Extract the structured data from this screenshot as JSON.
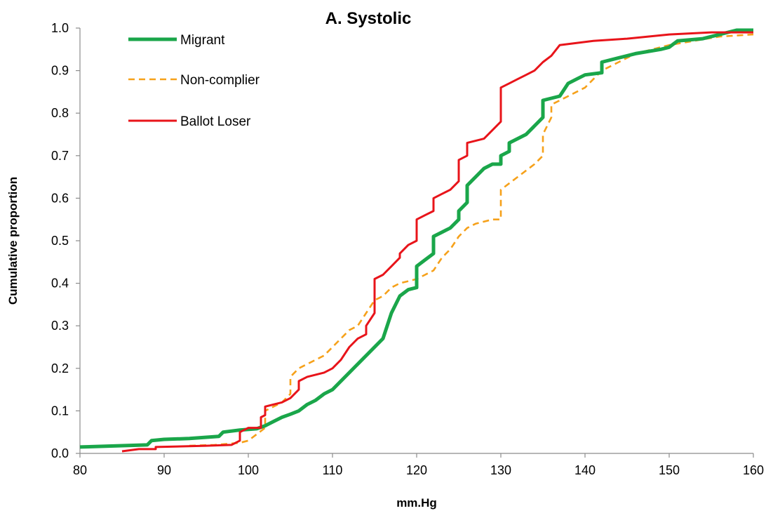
{
  "chart_data": {
    "type": "line",
    "title": "A. Systolic",
    "xlabel": "mm.Hg",
    "ylabel": "Cumulative proportion",
    "xlim": [
      80,
      160
    ],
    "ylim": [
      0,
      1
    ],
    "x_ticks": [
      "80",
      "90",
      "100",
      "110",
      "120",
      "130",
      "140",
      "150",
      "160"
    ],
    "y_ticks": [
      "0.0",
      "0.1",
      "0.2",
      "0.3",
      "0.4",
      "0.5",
      "0.6",
      "0.7",
      "0.8",
      "0.9",
      "1.0"
    ],
    "grid": false,
    "legend_position": "top-left",
    "series": [
      {
        "name": "Migrant",
        "color": "#1aa64a",
        "style": "solid-thick",
        "points": [
          [
            80,
            0.015
          ],
          [
            88,
            0.02
          ],
          [
            88.5,
            0.03
          ],
          [
            90,
            0.033
          ],
          [
            93,
            0.035
          ],
          [
            96.5,
            0.04
          ],
          [
            97,
            0.05
          ],
          [
            99,
            0.055
          ],
          [
            101,
            0.058
          ],
          [
            102,
            0.065
          ],
          [
            103,
            0.075
          ],
          [
            104,
            0.085
          ],
          [
            105,
            0.092
          ],
          [
            106,
            0.1
          ],
          [
            107,
            0.115
          ],
          [
            108,
            0.125
          ],
          [
            109,
            0.14
          ],
          [
            110,
            0.15
          ],
          [
            111,
            0.17
          ],
          [
            112,
            0.19
          ],
          [
            113,
            0.21
          ],
          [
            114,
            0.23
          ],
          [
            115,
            0.25
          ],
          [
            116,
            0.27
          ],
          [
            116.5,
            0.3
          ],
          [
            117,
            0.33
          ],
          [
            118,
            0.37
          ],
          [
            119,
            0.385
          ],
          [
            120,
            0.39
          ],
          [
            120,
            0.44
          ],
          [
            121,
            0.455
          ],
          [
            122,
            0.47
          ],
          [
            122,
            0.51
          ],
          [
            123,
            0.52
          ],
          [
            124,
            0.53
          ],
          [
            125,
            0.55
          ],
          [
            125,
            0.57
          ],
          [
            126,
            0.59
          ],
          [
            126,
            0.63
          ],
          [
            127,
            0.65
          ],
          [
            128,
            0.67
          ],
          [
            129,
            0.68
          ],
          [
            130,
            0.68
          ],
          [
            130,
            0.7
          ],
          [
            131,
            0.71
          ],
          [
            131,
            0.73
          ],
          [
            133,
            0.75
          ],
          [
            134,
            0.77
          ],
          [
            135,
            0.79
          ],
          [
            135,
            0.83
          ],
          [
            137,
            0.84
          ],
          [
            138,
            0.87
          ],
          [
            139,
            0.88
          ],
          [
            140,
            0.89
          ],
          [
            142,
            0.895
          ],
          [
            142,
            0.92
          ],
          [
            144,
            0.93
          ],
          [
            146,
            0.94
          ],
          [
            149,
            0.95
          ],
          [
            150,
            0.955
          ],
          [
            151,
            0.97
          ],
          [
            154,
            0.975
          ],
          [
            156,
            0.985
          ],
          [
            158,
            0.995
          ],
          [
            160,
            0.995
          ]
        ]
      },
      {
        "name": "Non-complier",
        "color": "#f6a11a",
        "style": "dashed",
        "points": [
          [
            93,
            0.018
          ],
          [
            96,
            0.02
          ],
          [
            99,
            0.025
          ],
          [
            100,
            0.03
          ],
          [
            102,
            0.06
          ],
          [
            102,
            0.1
          ],
          [
            104,
            0.12
          ],
          [
            105,
            0.14
          ],
          [
            105,
            0.18
          ],
          [
            106,
            0.2
          ],
          [
            107,
            0.21
          ],
          [
            108,
            0.22
          ],
          [
            109,
            0.23
          ],
          [
            110,
            0.25
          ],
          [
            111,
            0.27
          ],
          [
            112,
            0.29
          ],
          [
            113,
            0.3
          ],
          [
            114,
            0.33
          ],
          [
            115,
            0.36
          ],
          [
            116,
            0.37
          ],
          [
            117,
            0.39
          ],
          [
            118,
            0.4
          ],
          [
            119,
            0.405
          ],
          [
            120,
            0.41
          ],
          [
            121,
            0.42
          ],
          [
            122,
            0.43
          ],
          [
            123,
            0.46
          ],
          [
            124,
            0.48
          ],
          [
            125,
            0.51
          ],
          [
            126,
            0.53
          ],
          [
            127,
            0.54
          ],
          [
            128,
            0.545
          ],
          [
            129,
            0.55
          ],
          [
            130,
            0.55
          ],
          [
            130,
            0.62
          ],
          [
            132,
            0.65
          ],
          [
            134,
            0.68
          ],
          [
            135,
            0.7
          ],
          [
            135,
            0.75
          ],
          [
            136,
            0.79
          ],
          [
            136,
            0.82
          ],
          [
            138,
            0.84
          ],
          [
            140,
            0.86
          ],
          [
            141,
            0.88
          ],
          [
            142,
            0.9
          ],
          [
            144,
            0.92
          ],
          [
            146,
            0.94
          ],
          [
            148,
            0.95
          ],
          [
            150,
            0.96
          ],
          [
            153,
            0.97
          ],
          [
            156,
            0.98
          ],
          [
            160,
            0.985
          ]
        ]
      },
      {
        "name": "Ballot Loser",
        "color": "#e8141a",
        "style": "solid",
        "points": [
          [
            85,
            0.005
          ],
          [
            87,
            0.01
          ],
          [
            89,
            0.01
          ],
          [
            89,
            0.015
          ],
          [
            95,
            0.018
          ],
          [
            98,
            0.02
          ],
          [
            99,
            0.03
          ],
          [
            99,
            0.05
          ],
          [
            100,
            0.06
          ],
          [
            101.5,
            0.06
          ],
          [
            101.5,
            0.085
          ],
          [
            102,
            0.09
          ],
          [
            102,
            0.11
          ],
          [
            104,
            0.12
          ],
          [
            105,
            0.13
          ],
          [
            106,
            0.15
          ],
          [
            106,
            0.17
          ],
          [
            107,
            0.18
          ],
          [
            108,
            0.185
          ],
          [
            109,
            0.19
          ],
          [
            110,
            0.2
          ],
          [
            111,
            0.22
          ],
          [
            112,
            0.25
          ],
          [
            113,
            0.27
          ],
          [
            114,
            0.28
          ],
          [
            114,
            0.3
          ],
          [
            115,
            0.33
          ],
          [
            115,
            0.41
          ],
          [
            116,
            0.42
          ],
          [
            117,
            0.44
          ],
          [
            118,
            0.46
          ],
          [
            118,
            0.47
          ],
          [
            119,
            0.49
          ],
          [
            120,
            0.5
          ],
          [
            120,
            0.55
          ],
          [
            121,
            0.56
          ],
          [
            122,
            0.57
          ],
          [
            122,
            0.6
          ],
          [
            123,
            0.61
          ],
          [
            124,
            0.62
          ],
          [
            125,
            0.64
          ],
          [
            125,
            0.69
          ],
          [
            126,
            0.7
          ],
          [
            126,
            0.73
          ],
          [
            128,
            0.74
          ],
          [
            129,
            0.76
          ],
          [
            130,
            0.78
          ],
          [
            130,
            0.86
          ],
          [
            131,
            0.87
          ],
          [
            132,
            0.88
          ],
          [
            133,
            0.89
          ],
          [
            134,
            0.9
          ],
          [
            135,
            0.92
          ],
          [
            136,
            0.935
          ],
          [
            137,
            0.96
          ],
          [
            139,
            0.965
          ],
          [
            141,
            0.97
          ],
          [
            145,
            0.975
          ],
          [
            150,
            0.985
          ],
          [
            155,
            0.99
          ],
          [
            160,
            0.99
          ]
        ]
      }
    ]
  }
}
